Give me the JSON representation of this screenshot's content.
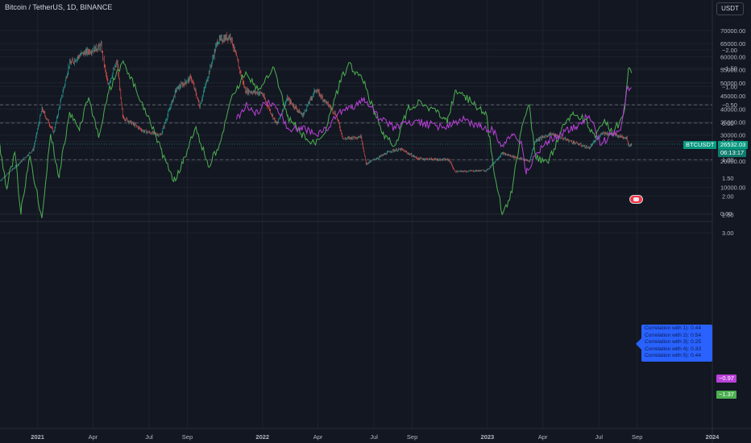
{
  "header": {
    "title": "Bitcoin / TetherUS, 1D, BINANCE",
    "currency": "USDT"
  },
  "price_tags": {
    "symbol": "BTCUSDT",
    "price": "26532.03",
    "countdown": "06:13:17",
    "value_purple": "−0.97",
    "value_green": "−1.37"
  },
  "correlation_box": {
    "lines": [
      "Correlation with 1): 0.44",
      "Correlation with 2): 0.54",
      "Correlation with 3): 0.25",
      "Correlation with 4): 0.33",
      "Correlation with 5): 0.44"
    ]
  },
  "colors": {
    "background": "#131722",
    "up": "#26a69a",
    "down": "#ef5350",
    "osc_green": "#4caf50",
    "osc_purple": "#ba40d9",
    "box": "#2962ff",
    "grid": "#1e222d"
  },
  "chart_data": [
    {
      "type": "candlestick",
      "title": "Bitcoin / TetherUS, 1D, BINANCE",
      "yticks": [
        0,
        10000,
        20000,
        25000,
        30000,
        35000,
        40000,
        45000,
        50000,
        55000,
        60000,
        65000,
        70000
      ],
      "ytick_labels": [
        "0.00",
        "10000.00",
        "20000.00",
        "25000.00",
        "30000.00",
        "35000.00",
        "40000.00",
        "45000.00",
        "50000.00",
        "55000.00",
        "60000.00",
        "65000.00",
        "70000.00"
      ],
      "xticks": [
        "2021",
        "Apr",
        "Jul",
        "Sep",
        "2022",
        "Apr",
        "Jul",
        "Sep",
        "2023",
        "Apr",
        "Jul",
        "Sep",
        "2024"
      ],
      "xrange": [
        "2020-11-01",
        "2024-01-01"
      ],
      "ylim": [
        0,
        70000
      ],
      "grid": true,
      "last_price": 26532.03,
      "close_path": [
        [
          "2020-11-01",
          12500
        ],
        [
          "2020-12-01",
          19000
        ],
        [
          "2020-12-25",
          24500
        ],
        [
          "2021-01-08",
          40000
        ],
        [
          "2021-01-27",
          31000
        ],
        [
          "2021-02-21",
          57000
        ],
        [
          "2021-03-13",
          61000
        ],
        [
          "2021-04-14",
          64000
        ],
        [
          "2021-04-25",
          49000
        ],
        [
          "2021-05-10",
          58000
        ],
        [
          "2021-05-19",
          37000
        ],
        [
          "2021-06-22",
          31500
        ],
        [
          "2021-07-20",
          30000
        ],
        [
          "2021-08-14",
          47500
        ],
        [
          "2021-09-07",
          52000
        ],
        [
          "2021-09-21",
          41000
        ],
        [
          "2021-10-20",
          66000
        ],
        [
          "2021-11-10",
          68000
        ],
        [
          "2021-12-04",
          47000
        ],
        [
          "2021-12-31",
          46000
        ],
        [
          "2022-01-24",
          34000
        ],
        [
          "2022-02-10",
          44000
        ],
        [
          "2022-03-07",
          37500
        ],
        [
          "2022-03-28",
          47500
        ],
        [
          "2022-04-30",
          38000
        ],
        [
          "2022-05-12",
          28500
        ],
        [
          "2022-06-10",
          29500
        ],
        [
          "2022-06-18",
          19000
        ],
        [
          "2022-07-29",
          24000
        ],
        [
          "2022-08-14",
          24500
        ],
        [
          "2022-09-10",
          21000
        ],
        [
          "2022-10-31",
          20500
        ],
        [
          "2022-11-09",
          16000
        ],
        [
          "2022-12-31",
          16500
        ],
        [
          "2023-01-25",
          23000
        ],
        [
          "2023-03-10",
          20000
        ],
        [
          "2023-03-20",
          28000
        ],
        [
          "2023-04-14",
          30500
        ],
        [
          "2023-06-15",
          25000
        ],
        [
          "2023-07-06",
          31000
        ],
        [
          "2023-08-15",
          29000
        ],
        [
          "2023-08-18",
          26000
        ],
        [
          "2023-08-23",
          26532
        ]
      ]
    },
    {
      "type": "line",
      "yticks": [
        -2,
        -1.5,
        -1,
        -0.5,
        0,
        0.5,
        1,
        1.5,
        2,
        2.5,
        3
      ],
      "ytick_labels": [
        "−2.00",
        "−1.50",
        "−1.00",
        "−0.50",
        "0.00",
        "0.50",
        "1.00",
        "1.50",
        "2.00",
        "2.50",
        "3.00"
      ],
      "ylim": [
        -2.3,
        3.3
      ],
      "hlines": [
        1,
        0,
        -0.5
      ],
      "series": [
        {
          "color": "#4caf50",
          "last": -1.37,
          "points": [
            [
              "2020-11-01",
              0.6
            ],
            [
              "2020-11-12",
              1.8
            ],
            [
              "2020-11-25",
              0.8
            ],
            [
              "2020-12-05",
              2.5
            ],
            [
              "2020-12-20",
              0.9
            ],
            [
              "2021-01-08",
              2.6
            ],
            [
              "2021-01-22",
              0.3
            ],
            [
              "2021-02-05",
              1.5
            ],
            [
              "2021-02-22",
              -0.3
            ],
            [
              "2021-03-10",
              0.2
            ],
            [
              "2021-03-25",
              -0.7
            ],
            [
              "2021-04-10",
              0.4
            ],
            [
              "2021-04-25",
              -0.8
            ],
            [
              "2021-05-20",
              -1.7
            ],
            [
              "2021-06-10",
              -0.9
            ],
            [
              "2021-06-30",
              -0.2
            ],
            [
              "2021-07-20",
              0.7
            ],
            [
              "2021-08-10",
              1.6
            ],
            [
              "2021-08-25",
              1.1
            ],
            [
              "2021-09-15",
              0.1
            ],
            [
              "2021-10-05",
              1.2
            ],
            [
              "2021-10-25",
              0.5
            ],
            [
              "2021-11-15",
              -0.8
            ],
            [
              "2021-12-05",
              -1.4
            ],
            [
              "2021-12-25",
              -0.9
            ],
            [
              "2022-01-20",
              -1.5
            ],
            [
              "2022-02-10",
              -0.2
            ],
            [
              "2022-03-05",
              0.3
            ],
            [
              "2022-03-28",
              0.6
            ],
            [
              "2022-04-15",
              0.1
            ],
            [
              "2022-05-05",
              -1.0
            ],
            [
              "2022-05-20",
              -1.6
            ],
            [
              "2022-06-10",
              -1.3
            ],
            [
              "2022-06-20",
              -0.9
            ],
            [
              "2022-07-15",
              0.3
            ],
            [
              "2022-08-05",
              0.6
            ],
            [
              "2022-08-25",
              -0.4
            ],
            [
              "2022-09-15",
              -0.6
            ],
            [
              "2022-10-10",
              -0.3
            ],
            [
              "2022-10-28",
              0.0
            ],
            [
              "2022-11-10",
              -0.9
            ],
            [
              "2022-12-05",
              -0.6
            ],
            [
              "2022-12-31",
              -0.2
            ],
            [
              "2023-01-15",
              1.6
            ],
            [
              "2023-01-25",
              2.5
            ],
            [
              "2023-02-10",
              1.9
            ],
            [
              "2023-02-25",
              0.2
            ],
            [
              "2023-03-10",
              -0.5
            ],
            [
              "2023-03-20",
              0.9
            ],
            [
              "2023-04-10",
              1.1
            ],
            [
              "2023-05-01",
              0.2
            ],
            [
              "2023-05-20",
              -0.3
            ],
            [
              "2023-06-10",
              -0.1
            ],
            [
              "2023-06-25",
              0.4
            ],
            [
              "2023-07-10",
              -0.1
            ],
            [
              "2023-07-25",
              0.3
            ],
            [
              "2023-08-05",
              -0.1
            ],
            [
              "2023-08-12",
              -0.4
            ],
            [
              "2023-08-18",
              -1.5
            ],
            [
              "2023-08-23",
              -1.37
            ]
          ]
        },
        {
          "color": "#ba40d9",
          "last": -0.97,
          "points": [
            [
              "2021-11-20",
              -0.1
            ],
            [
              "2021-12-05",
              -0.5
            ],
            [
              "2021-12-20",
              -0.2
            ],
            [
              "2022-01-10",
              -0.6
            ],
            [
              "2022-01-25",
              -0.4
            ],
            [
              "2022-02-15",
              0.2
            ],
            [
              "2022-03-05",
              0.1
            ],
            [
              "2022-03-28",
              0.3
            ],
            [
              "2022-04-15",
              0.2
            ],
            [
              "2022-05-05",
              -0.3
            ],
            [
              "2022-05-25",
              -0.4
            ],
            [
              "2022-06-15",
              -0.7
            ],
            [
              "2022-07-10",
              -0.1
            ],
            [
              "2022-08-05",
              0.15
            ],
            [
              "2022-08-25",
              0.0
            ],
            [
              "2022-09-20",
              0.0
            ],
            [
              "2022-10-15",
              0.1
            ],
            [
              "2022-11-05",
              0.05
            ],
            [
              "2022-11-25",
              -0.1
            ],
            [
              "2022-12-20",
              0.1
            ],
            [
              "2023-01-10",
              0.2
            ],
            [
              "2023-01-25",
              0.6
            ],
            [
              "2023-02-10",
              0.3
            ],
            [
              "2023-02-25",
              0.5
            ],
            [
              "2023-03-05",
              1.4
            ],
            [
              "2023-03-20",
              0.9
            ],
            [
              "2023-04-10",
              0.5
            ],
            [
              "2023-05-01",
              0.3
            ],
            [
              "2023-05-25",
              0.1
            ],
            [
              "2023-06-15",
              -0.2
            ],
            [
              "2023-07-05",
              0.6
            ],
            [
              "2023-07-20",
              0.3
            ],
            [
              "2023-08-05",
              0.2
            ],
            [
              "2023-08-15",
              -0.9
            ],
            [
              "2023-08-23",
              -0.97
            ]
          ]
        }
      ]
    }
  ]
}
